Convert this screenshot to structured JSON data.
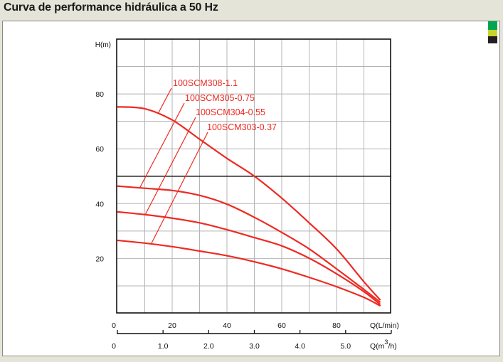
{
  "header": {
    "title": "Curva de performance hidráulica a 50 Hz"
  },
  "swatches": [
    "#00a651",
    "#c8d62b",
    "#231f20"
  ],
  "chart_data": {
    "type": "line",
    "title": "Curva de performance hidráulica a 50 Hz",
    "ylabel": "H(m)",
    "xlabel": "Q(L/min)",
    "xlabel2": "Q(m³/h)",
    "xlabel2_base": "Q(m",
    "xlabel2_sup": "3",
    "xlabel2_tail": "/h)",
    "xlim": [
      0,
      100
    ],
    "ylim": [
      0,
      100
    ],
    "grid": true,
    "reference_line_h": 50,
    "xticks": [
      "0",
      "20",
      "40",
      "60",
      "80"
    ],
    "xtick_values": [
      0,
      20,
      40,
      60,
      80
    ],
    "x2ticks": [
      "0",
      "1.0",
      "2.0",
      "3.0",
      "4.0",
      "5.0"
    ],
    "x2tick_values": [
      0,
      1,
      2,
      3,
      4,
      5
    ],
    "yticks": [
      "20",
      "40",
      "60",
      "80"
    ],
    "ytick_values": [
      20,
      40,
      60,
      80
    ],
    "line_color": "#ee2a22",
    "x": [
      0,
      10,
      20,
      30,
      40,
      50,
      60,
      70,
      80,
      90,
      96
    ],
    "series": [
      {
        "name": "100SCM308-1.1",
        "values": [
          75.3,
          74.6,
          70.5,
          63.5,
          56.5,
          50,
          42,
          33,
          23.5,
          11.5,
          4.8
        ]
      },
      {
        "name": "100SCM305-0.75",
        "values": [
          46.4,
          45.6,
          44.8,
          43,
          39.8,
          35,
          29.5,
          23.5,
          16.2,
          8.7,
          4
        ]
      },
      {
        "name": "100SCM304-0.55",
        "values": [
          37,
          36,
          34.7,
          33,
          30.5,
          27.6,
          24.6,
          20.1,
          14.4,
          7.9,
          3.2
        ]
      },
      {
        "name": "100SCM303-0.37",
        "values": [
          26.6,
          25.6,
          24.3,
          22.7,
          21,
          18.8,
          16.2,
          13.1,
          9.7,
          5.8,
          2.7
        ]
      }
    ]
  }
}
